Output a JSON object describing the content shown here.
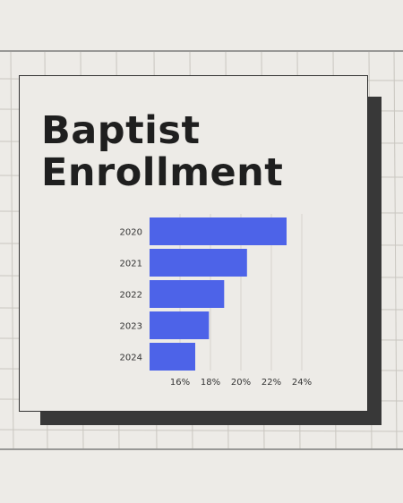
{
  "chart_data": {
    "type": "bar",
    "orientation": "horizontal",
    "title_lines": [
      "Baptist",
      "Enrollment"
    ],
    "categories": [
      "2020",
      "2021",
      "2022",
      "2023",
      "2024"
    ],
    "values": [
      23.0,
      20.4,
      18.9,
      17.9,
      17.0
    ],
    "xlabel": "",
    "ylabel": "",
    "xlim": [
      14,
      24
    ],
    "xticks": [
      16,
      18,
      20,
      22,
      24
    ],
    "tick_labels": [
      "16%",
      "18%",
      "20%",
      "22%",
      "24%"
    ],
    "grid": "vertical lines",
    "bar_color": "#4d63e8",
    "grid_color": "#d6d3ce"
  },
  "colors": {
    "background": "#edebe7",
    "shadow": "#383838",
    "title": "#1f1f1f"
  }
}
